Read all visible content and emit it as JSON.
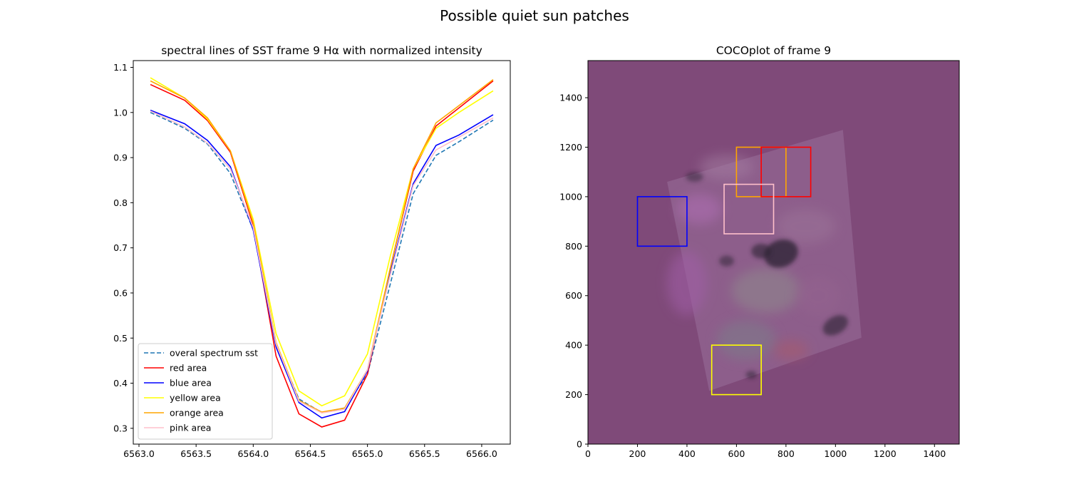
{
  "figure": {
    "suptitle": "Possible quiet sun patches"
  },
  "chart_data": [
    {
      "type": "line",
      "title": "spectral lines of SST frame 9 Hα with normalized intensity",
      "xlabel": "",
      "ylabel": "",
      "xlim": [
        6562.95,
        6566.25
      ],
      "ylim": [
        0.265,
        1.115
      ],
      "xticks": [
        6563.0,
        6563.5,
        6564.0,
        6564.5,
        6565.0,
        6565.5,
        6566.0
      ],
      "xtick_labels": [
        "6563.0",
        "6563.5",
        "6564.0",
        "6564.5",
        "6565.0",
        "6565.5",
        "6566.0"
      ],
      "yticks": [
        0.3,
        0.4,
        0.5,
        0.6,
        0.7,
        0.8,
        0.9,
        1.0,
        1.1
      ],
      "ytick_labels": [
        "0.3",
        "0.4",
        "0.5",
        "0.6",
        "0.7",
        "0.8",
        "0.9",
        "1.0",
        "1.1"
      ],
      "grid": false,
      "legend_position": "lower-left",
      "x": [
        6563.1,
        6563.4,
        6563.6,
        6563.8,
        6564.0,
        6564.2,
        6564.4,
        6564.6,
        6564.8,
        6565.0,
        6565.2,
        6565.4,
        6565.6,
        6565.8,
        6566.1
      ],
      "series": [
        {
          "name": "overal spectrum sst",
          "color": "#1f77b4",
          "dashed": true,
          "values": [
            1.0,
            0.965,
            0.93,
            0.865,
            0.74,
            0.485,
            0.365,
            0.335,
            0.345,
            0.42,
            0.62,
            0.82,
            0.905,
            0.935,
            0.983
          ]
        },
        {
          "name": "red area",
          "color": "#ff0000",
          "dashed": false,
          "values": [
            1.062,
            1.027,
            0.982,
            0.912,
            0.75,
            0.46,
            0.332,
            0.303,
            0.318,
            0.42,
            0.655,
            0.87,
            0.97,
            1.01,
            1.07
          ]
        },
        {
          "name": "blue area",
          "color": "#0000ff",
          "dashed": false,
          "values": [
            1.005,
            0.975,
            0.938,
            0.88,
            0.74,
            0.48,
            0.357,
            0.323,
            0.337,
            0.427,
            0.645,
            0.842,
            0.927,
            0.95,
            0.995
          ]
        },
        {
          "name": "yellow area",
          "color": "#ffff00",
          "dashed": false,
          "values": [
            1.077,
            1.032,
            0.985,
            0.915,
            0.763,
            0.51,
            0.383,
            0.35,
            0.372,
            0.465,
            0.682,
            0.875,
            0.965,
            1.0,
            1.048
          ]
        },
        {
          "name": "orange area",
          "color": "#ffa500",
          "dashed": false,
          "values": [
            1.07,
            1.032,
            0.988,
            0.915,
            0.755,
            0.49,
            0.362,
            0.336,
            0.345,
            0.43,
            0.655,
            0.875,
            0.977,
            1.015,
            1.073
          ]
        },
        {
          "name": "pink area",
          "color": "#ffc0cb",
          "dashed": false,
          "values": [
            1.003,
            0.968,
            0.932,
            0.875,
            0.745,
            0.487,
            0.36,
            0.334,
            0.342,
            0.43,
            0.64,
            0.838,
            0.917,
            0.945,
            0.988
          ]
        }
      ]
    },
    {
      "type": "heatmap",
      "title": "COCOplot of frame 9",
      "xlabel": "",
      "ylabel": "",
      "xlim": [
        0,
        1500
      ],
      "ylim": [
        0,
        1550
      ],
      "xticks": [
        0,
        200,
        400,
        600,
        800,
        1000,
        1200,
        1400
      ],
      "xtick_labels": [
        "0",
        "200",
        "400",
        "600",
        "800",
        "1000",
        "1200",
        "1400"
      ],
      "yticks": [
        0,
        200,
        400,
        600,
        800,
        1000,
        1200,
        1400
      ],
      "ytick_labels": [
        "0",
        "200",
        "400",
        "600",
        "800",
        "1000",
        "1200",
        "1400"
      ],
      "background_color": "#7f4a79",
      "grid": false,
      "image_corners_data": [
        [
          320,
          1060
        ],
        [
          1030,
          1270
        ],
        [
          1105,
          430
        ],
        [
          490,
          215
        ]
      ],
      "sunspots_data": [
        {
          "x": 780,
          "y": 770,
          "rx": 70,
          "ry": 55,
          "angle": -20,
          "opacity": 0.75
        },
        {
          "x": 700,
          "y": 780,
          "rx": 40,
          "ry": 30,
          "angle": 0,
          "opacity": 0.6
        },
        {
          "x": 560,
          "y": 740,
          "rx": 30,
          "ry": 22,
          "angle": 0,
          "opacity": 0.5
        },
        {
          "x": 1000,
          "y": 480,
          "rx": 55,
          "ry": 35,
          "angle": -30,
          "opacity": 0.6
        },
        {
          "x": 430,
          "y": 1080,
          "rx": 35,
          "ry": 20,
          "angle": 0,
          "opacity": 0.45
        },
        {
          "x": 660,
          "y": 280,
          "rx": 22,
          "ry": 16,
          "angle": 0,
          "opacity": 0.5
        }
      ],
      "rectangles": [
        {
          "name": "blue area",
          "color": "#0000ff",
          "x0": 200,
          "y0": 800,
          "x1": 400,
          "y1": 1000
        },
        {
          "name": "orange area",
          "color": "#ffa500",
          "x0": 600,
          "y0": 1000,
          "x1": 800,
          "y1": 1200
        },
        {
          "name": "red area",
          "color": "#ff0000",
          "x0": 700,
          "y0": 1000,
          "x1": 900,
          "y1": 1200
        },
        {
          "name": "pink area",
          "color": "#ffc0cb",
          "x0": 550,
          "y0": 850,
          "x1": 750,
          "y1": 1050
        },
        {
          "name": "yellow area",
          "color": "#ffff00",
          "x0": 500,
          "y0": 200,
          "x1": 700,
          "y1": 400
        }
      ]
    }
  ]
}
